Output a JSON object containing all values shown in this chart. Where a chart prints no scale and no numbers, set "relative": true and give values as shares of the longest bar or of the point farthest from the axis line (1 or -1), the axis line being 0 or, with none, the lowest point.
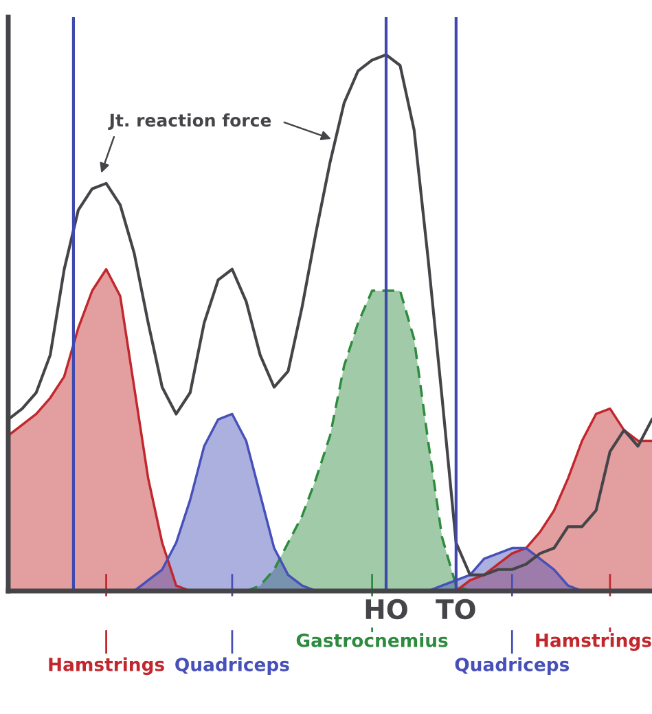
{
  "chart_data": {
    "type": "area",
    "relative": true,
    "legend": "bottom",
    "categories": [
      null,
      null,
      null,
      null,
      null,
      null,
      null,
      null,
      null,
      null,
      null,
      null,
      null,
      null,
      null,
      null,
      null,
      null,
      null,
      null,
      null,
      null,
      null,
      null,
      null,
      null,
      null,
      "HO",
      null,
      null,
      null,
      null,
      "TO",
      null,
      null,
      null,
      null,
      null,
      null,
      null,
      null,
      null,
      null,
      null,
      null,
      null,
      null
    ],
    "series": [
      {
        "name": "Hamstrings",
        "color": "#c1272d",
        "values": [
          0.29,
          0.31,
          0.33,
          0.36,
          0.4,
          0.49,
          0.56,
          0.6,
          0.55,
          0.38,
          0.21,
          0.09,
          0.01,
          0,
          null,
          null,
          null,
          null,
          null,
          null,
          null,
          null,
          null,
          null,
          null,
          null,
          null,
          null,
          null,
          null,
          null,
          null,
          null,
          null,
          null,
          null,
          null,
          null,
          null,
          null,
          null,
          null,
          null,
          null,
          null,
          null,
          null
        ]
      },
      {
        "name": "Gastrocnemius",
        "color": "#2e8b3e",
        "line_style": "dashed",
        "values": [
          null,
          null,
          null,
          null,
          null,
          null,
          null,
          null,
          null,
          null,
          null,
          null,
          null,
          null,
          null,
          null,
          null,
          0,
          0.01,
          0.04,
          0.09,
          0.14,
          0.21,
          0.29,
          0.42,
          0.5,
          0.56,
          0.56,
          0.56,
          0.47,
          0.28,
          0.1,
          0.01,
          0,
          null,
          null,
          null,
          null,
          null,
          null,
          null,
          null,
          null,
          null,
          null,
          null,
          null
        ]
      },
      {
        "name": "Hamstrings",
        "color": "#c1272d",
        "values": [
          null,
          null,
          null,
          null,
          null,
          null,
          null,
          null,
          null,
          null,
          null,
          null,
          null,
          null,
          null,
          null,
          null,
          null,
          null,
          null,
          null,
          null,
          null,
          null,
          null,
          null,
          null,
          null,
          null,
          null,
          null,
          null,
          0,
          0.02,
          0.03,
          0.05,
          0.07,
          0.08,
          0.11,
          0.15,
          0.21,
          0.28,
          0.33,
          0.34,
          0.3,
          0.28,
          0.28
        ]
      },
      {
        "name": "Quadriceps",
        "color": "#4650b8",
        "values": [
          null,
          null,
          null,
          null,
          null,
          null,
          null,
          null,
          null,
          0,
          0.02,
          0.04,
          0.09,
          0.17,
          0.27,
          0.32,
          0.33,
          0.28,
          0.18,
          0.08,
          0.03,
          0.01,
          0,
          null,
          null,
          null,
          null,
          null,
          null,
          null,
          null,
          null,
          null,
          null,
          null,
          null,
          null,
          null,
          null,
          null,
          null,
          null,
          null,
          null,
          null,
          null,
          null
        ]
      },
      {
        "name": "Quadriceps",
        "color": "#4650b8",
        "values": [
          null,
          null,
          null,
          null,
          null,
          null,
          null,
          null,
          null,
          null,
          null,
          null,
          null,
          null,
          null,
          null,
          null,
          null,
          null,
          null,
          null,
          null,
          null,
          null,
          null,
          null,
          null,
          null,
          null,
          null,
          0,
          0.01,
          0.02,
          0.03,
          0.06,
          0.07,
          0.08,
          0.08,
          0.06,
          0.04,
          0.01,
          0,
          null,
          null,
          null,
          null,
          null
        ]
      },
      {
        "name": "Jt. reaction force",
        "type": "line",
        "color": "#454549",
        "values": [
          0.32,
          0.34,
          0.37,
          0.44,
          0.6,
          0.71,
          0.75,
          0.76,
          0.72,
          0.63,
          0.5,
          0.38,
          0.33,
          0.37,
          0.5,
          0.58,
          0.6,
          0.54,
          0.44,
          0.38,
          0.41,
          0.53,
          0.67,
          0.8,
          0.91,
          0.97,
          0.99,
          1.0,
          0.98,
          0.86,
          0.62,
          0.36,
          0.09,
          0.03,
          0.03,
          0.04,
          0.04,
          0.05,
          0.07,
          0.08,
          0.12,
          0.12,
          0.15,
          0.26,
          0.3,
          0.27,
          0.32
        ]
      }
    ],
    "ref_lines": [
      {
        "axis": "x",
        "value": "HO",
        "color": "#3f48ac"
      },
      {
        "axis": "x",
        "value": "TO",
        "color": "#3f48ac"
      }
    ]
  }
}
